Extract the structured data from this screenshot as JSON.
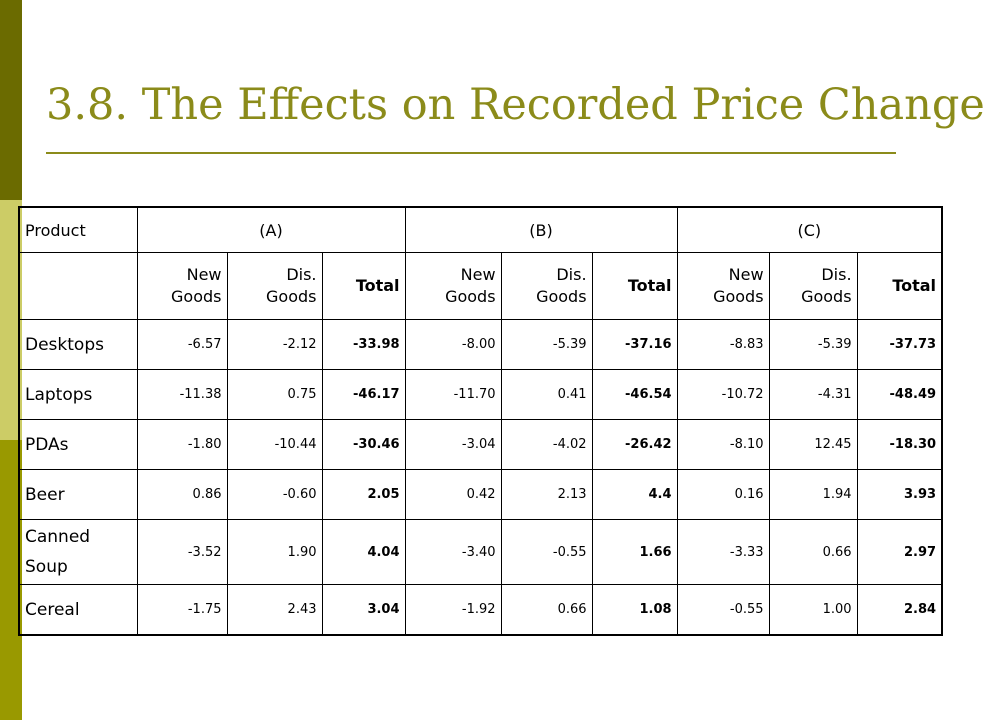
{
  "slide": {
    "title": "3.8. The Effects on Recorded Price Change"
  },
  "table": {
    "header": {
      "product": "Product",
      "groups": [
        "(A)",
        "(B)",
        "(C)"
      ]
    },
    "subheaders": [
      {
        "new": "New Goods",
        "dis": "Dis. Goods",
        "total": "Total"
      },
      {
        "new": "New Goods",
        "dis": "Dis. Goods",
        "total": "Total"
      },
      {
        "new": "New Goods",
        "dis": "Dis. Goods",
        "total": "Total"
      }
    ],
    "rows": [
      {
        "name": "Desktops",
        "values": [
          "-6.57",
          "-2.12",
          "-33.98",
          "-8.00",
          "-5.39",
          "-37.16",
          "-8.83",
          "-5.39",
          "-37.73"
        ]
      },
      {
        "name": "Laptops",
        "values": [
          "-11.38",
          "0.75",
          "-46.17",
          "-11.70",
          "0.41",
          "-46.54",
          "-10.72",
          "-4.31",
          "-48.49"
        ]
      },
      {
        "name": "PDAs",
        "values": [
          "-1.80",
          "-10.44",
          "-30.46",
          "-3.04",
          "-4.02",
          "-26.42",
          "-8.10",
          "12.45",
          "-18.30"
        ]
      },
      {
        "name": "Beer",
        "values": [
          "0.86",
          "-0.60",
          "2.05",
          "0.42",
          "2.13",
          "4.4",
          "0.16",
          "1.94",
          "3.93"
        ]
      },
      {
        "name": "Canned Soup",
        "values": [
          "-3.52",
          "1.90",
          "4.04",
          "-3.40",
          "-0.55",
          "1.66",
          "-3.33",
          "0.66",
          "2.97"
        ]
      },
      {
        "name": "Cereal",
        "values": [
          "-1.75",
          "2.43",
          "3.04",
          "-1.92",
          "0.66",
          "1.08",
          "-0.55",
          "1.00",
          "2.84"
        ]
      }
    ]
  }
}
